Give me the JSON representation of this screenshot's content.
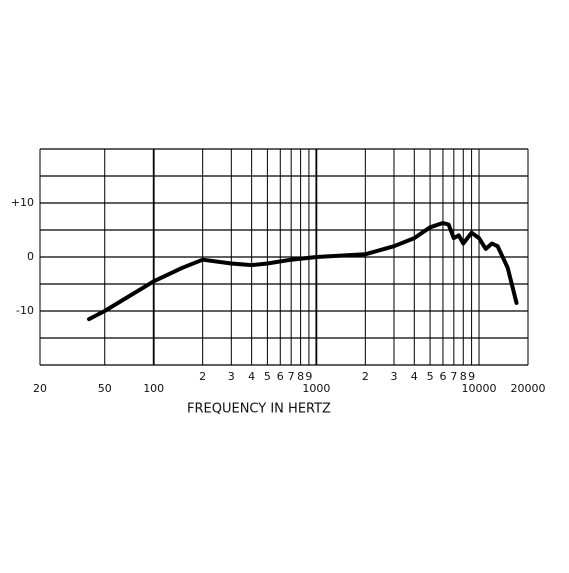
{
  "chart_data": {
    "type": "line",
    "x_label": "FREQUENCY IN HERTZ",
    "log_x": true,
    "xlim": [
      20,
      20000
    ],
    "ylim": [
      -20,
      20
    ],
    "xticks": [
      20,
      50,
      100,
      {
        "value": 200,
        "label": "2"
      },
      {
        "value": 300,
        "label": "3"
      },
      {
        "value": 400,
        "label": "4"
      },
      {
        "value": 500,
        "label": "5"
      },
      {
        "value": 600,
        "label": "6"
      },
      {
        "value": 700,
        "label": "7"
      },
      {
        "value": 800,
        "label": "8"
      },
      {
        "value": 900,
        "label": "9"
      },
      1000,
      {
        "value": 2000,
        "label": "2"
      },
      {
        "value": 3000,
        "label": "3"
      },
      {
        "value": 4000,
        "label": "4"
      },
      {
        "value": 5000,
        "label": "5"
      },
      {
        "value": 6000,
        "label": "6"
      },
      {
        "value": 7000,
        "label": "7"
      },
      {
        "value": 8000,
        "label": "8"
      },
      {
        "value": 9000,
        "label": "9"
      },
      10000,
      20000
    ],
    "yticks": [
      {
        "value": 10,
        "label": "+10"
      },
      0,
      {
        "value": -10,
        "label": "-10"
      }
    ],
    "ygrid": [
      -20,
      -15,
      -10,
      -5,
      0,
      5,
      10,
      15,
      20
    ],
    "grid": true,
    "color": "#000000",
    "x": [
      40,
      50,
      100,
      150,
      200,
      300,
      400,
      500,
      700,
      1000,
      1500,
      2000,
      3000,
      4000,
      5000,
      6000,
      6500,
      7000,
      7500,
      8000,
      9000,
      10000,
      11000,
      12000,
      13000,
      15000,
      17000
    ],
    "values": [
      -11.5,
      -10,
      -4.5,
      -2,
      -0.5,
      -1.2,
      -1.5,
      -1.2,
      -0.5,
      0,
      0.3,
      0.5,
      2,
      3.5,
      5.5,
      6.3,
      6,
      3.5,
      4,
      2.5,
      4.5,
      3.5,
      1.5,
      2.5,
      2,
      -2,
      -8.5
    ]
  }
}
